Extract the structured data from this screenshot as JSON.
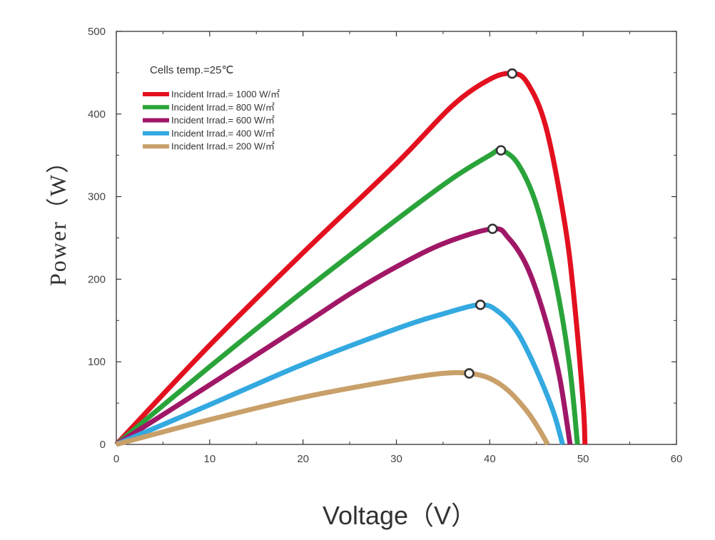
{
  "chart_data": {
    "type": "line",
    "xlabel": "Voltage（V）",
    "ylabel": "Power（W）",
    "xlim": [
      0,
      60
    ],
    "ylim": [
      0,
      500
    ],
    "xticks": [
      0,
      10,
      20,
      30,
      40,
      50,
      60
    ],
    "yticks": [
      0,
      100,
      200,
      300,
      400,
      500
    ],
    "grid": false,
    "legend_position": "top-left",
    "annotation": "Cells temp.=25℃",
    "series": [
      {
        "name": "Incident Irrad.= 1000 W/㎡",
        "color": "#e3101f",
        "points": [
          [
            0,
            0
          ],
          [
            10,
            120
          ],
          [
            20,
            232
          ],
          [
            30,
            340
          ],
          [
            36,
            410
          ],
          [
            40,
            442
          ],
          [
            42.4,
            449
          ],
          [
            44,
            438
          ],
          [
            46,
            385
          ],
          [
            48,
            270
          ],
          [
            49,
            180
          ],
          [
            50,
            50
          ],
          [
            50.2,
            0
          ]
        ],
        "mpp": [
          42.4,
          449
        ]
      },
      {
        "name": "Incident Irrad.= 800 W/㎡",
        "color": "#2aa43a",
        "points": [
          [
            0,
            0
          ],
          [
            10,
            94
          ],
          [
            20,
            185
          ],
          [
            30,
            272
          ],
          [
            36,
            322
          ],
          [
            40,
            350
          ],
          [
            41.2,
            356
          ],
          [
            43,
            340
          ],
          [
            45,
            290
          ],
          [
            47,
            200
          ],
          [
            48.5,
            100
          ],
          [
            49.4,
            0
          ]
        ],
        "mpp": [
          41.2,
          356
        ]
      },
      {
        "name": "Incident Irrad.= 600 W/㎡",
        "color": "#a01767",
        "points": [
          [
            0,
            0
          ],
          [
            10,
            72
          ],
          [
            20,
            145
          ],
          [
            25,
            182
          ],
          [
            30,
            215
          ],
          [
            35,
            243
          ],
          [
            40.3,
            261
          ],
          [
            42,
            250
          ],
          [
            44,
            215
          ],
          [
            46,
            150
          ],
          [
            47.5,
            80
          ],
          [
            48.6,
            0
          ]
        ],
        "mpp": [
          40.3,
          261
        ]
      },
      {
        "name": "Incident Irrad.= 400 W/㎡",
        "color": "#33a9e0",
        "points": [
          [
            0,
            0
          ],
          [
            10,
            48
          ],
          [
            20,
            97
          ],
          [
            30,
            140
          ],
          [
            35,
            158
          ],
          [
            39,
            169
          ],
          [
            41,
            160
          ],
          [
            43,
            135
          ],
          [
            45,
            90
          ],
          [
            46.8,
            40
          ],
          [
            47.8,
            0
          ]
        ],
        "mpp": [
          39,
          169
        ]
      },
      {
        "name": "Incident Irrad.= 200 W/㎡",
        "color": "#c9a06a",
        "points": [
          [
            0,
            0
          ],
          [
            10,
            30
          ],
          [
            20,
            57
          ],
          [
            30,
            78
          ],
          [
            35,
            86
          ],
          [
            37.8,
            86
          ],
          [
            40,
            80
          ],
          [
            42,
            65
          ],
          [
            44,
            40
          ],
          [
            45.3,
            18
          ],
          [
            46.2,
            0
          ]
        ],
        "mpp": [
          37.8,
          86
        ]
      }
    ]
  }
}
